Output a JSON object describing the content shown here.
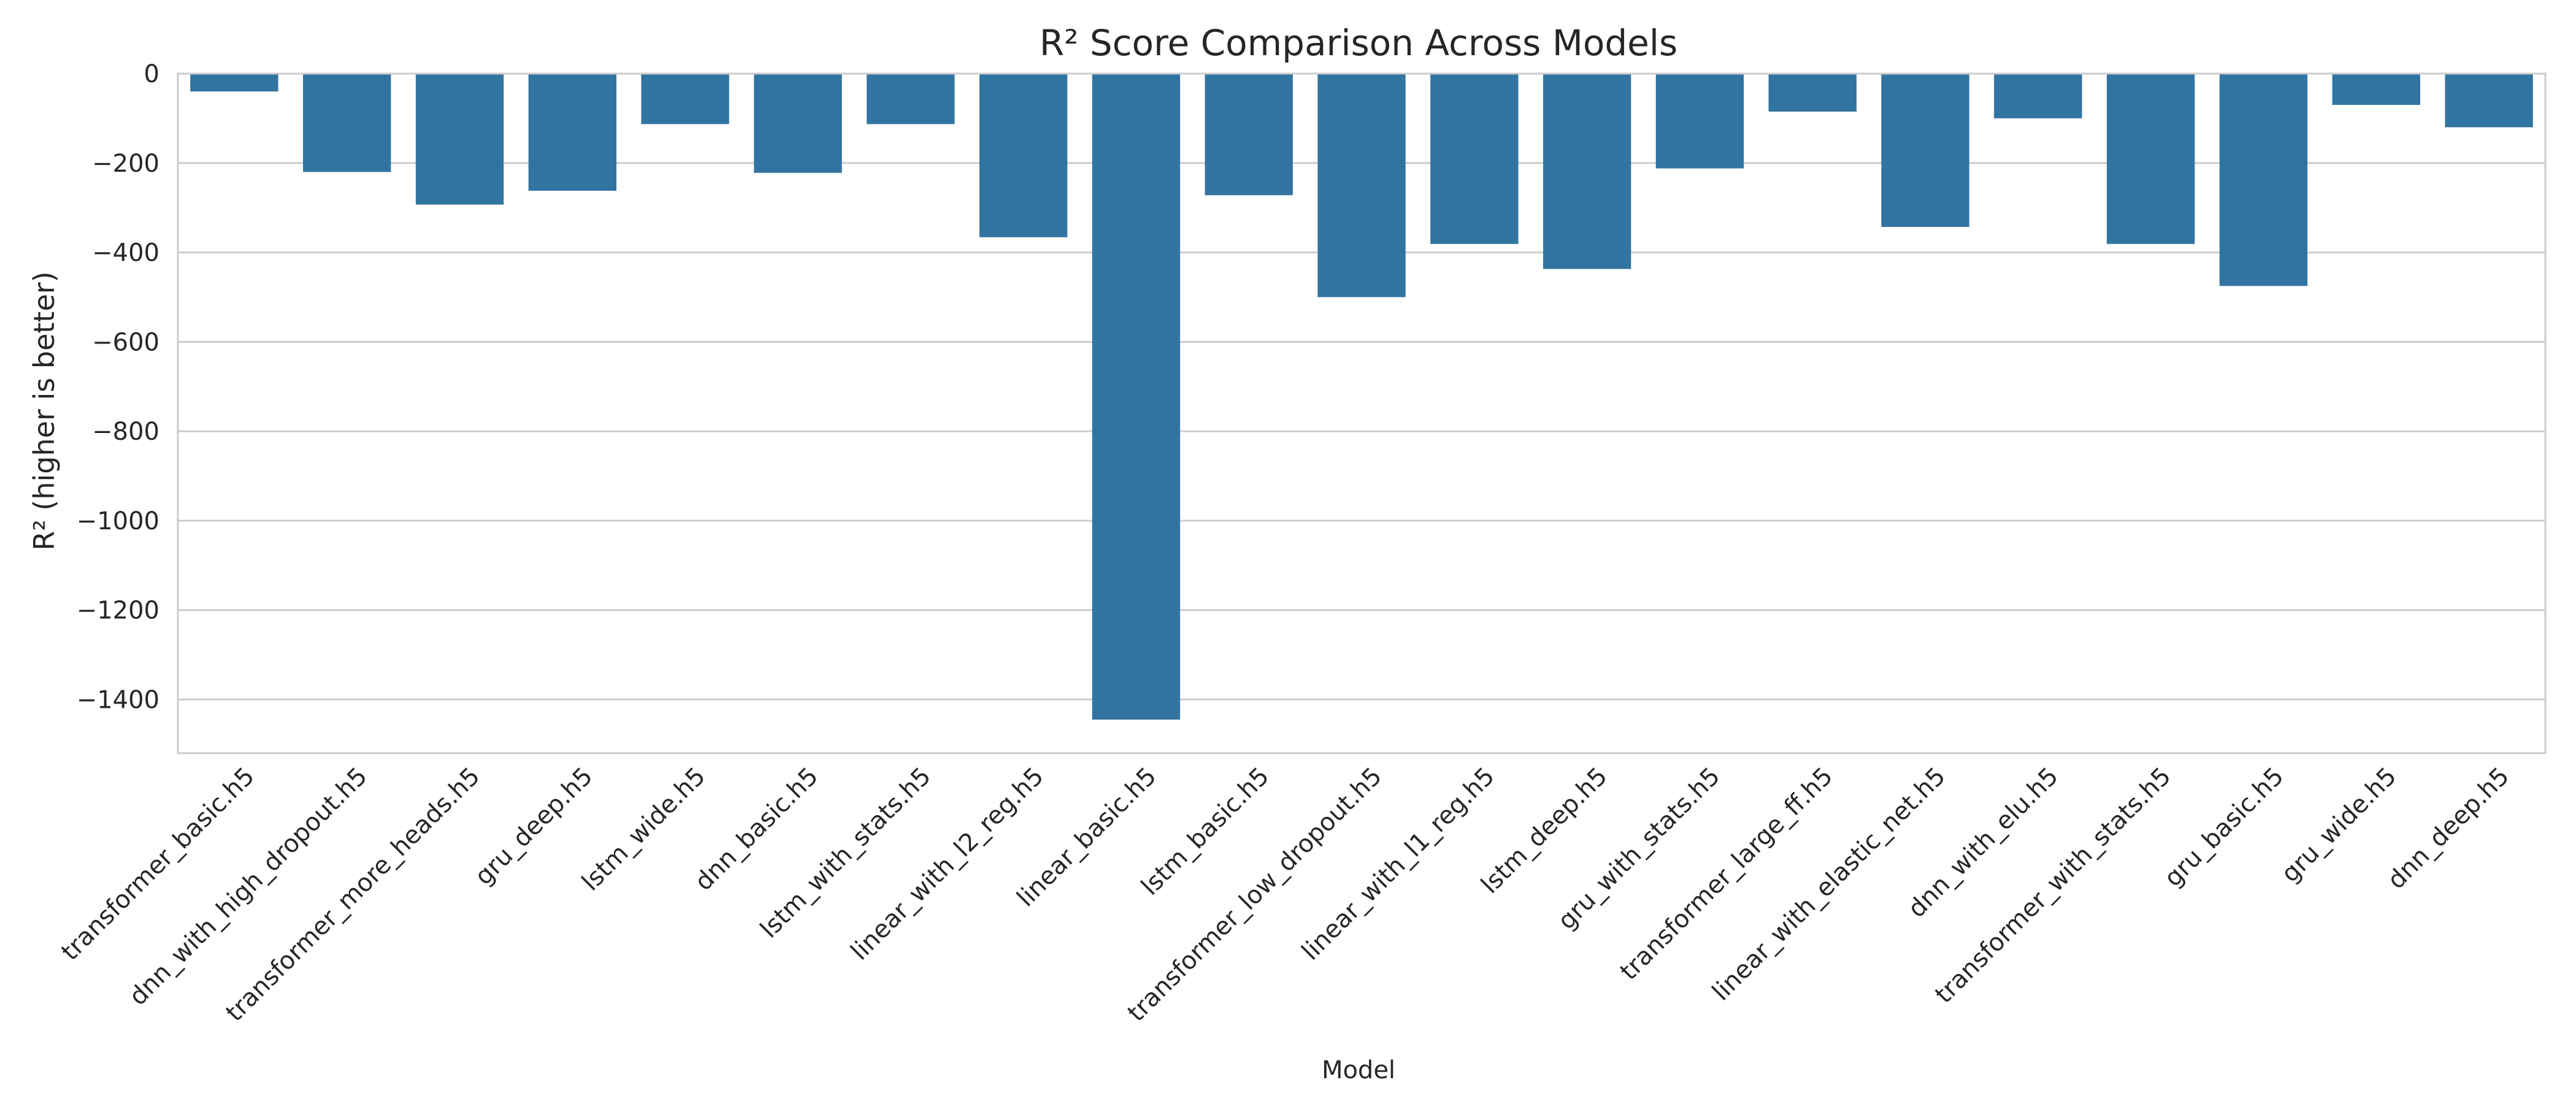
{
  "chart_data": {
    "type": "bar",
    "title": "R² Score Comparison Across Models",
    "xlabel": "Model",
    "ylabel": "R² (higher is better)",
    "ylim": [
      -1520,
      0
    ],
    "yticks": [
      0,
      -200,
      -400,
      -600,
      -800,
      -1000,
      -1200,
      -1400
    ],
    "ytick_labels": [
      "0",
      "−200",
      "−400",
      "−600",
      "−800",
      "−1000",
      "−1200",
      "−1400"
    ],
    "grid": true,
    "bar_color": "#3274a1",
    "grid_color": "#cccccc",
    "categories": [
      "transformer_basic.h5",
      "dnn_with_high_dropout.h5",
      "transformer_more_heads.h5",
      "gru_deep.h5",
      "lstm_wide.h5",
      "dnn_basic.h5",
      "lstm_with_stats.h5",
      "linear_with_l2_reg.h5",
      "linear_basic.h5",
      "lstm_basic.h5",
      "transformer_low_dropout.h5",
      "linear_with_l1_reg.h5",
      "lstm_deep.h5",
      "gru_with_stats.h5",
      "transformer_large_ff.h5",
      "linear_with_elastic_net.h5",
      "dnn_with_elu.h5",
      "transformer_with_stats.h5",
      "gru_basic.h5",
      "gru_wide.h5",
      "dnn_deep.h5"
    ],
    "values": [
      -40,
      -220,
      -293,
      -262,
      -113,
      -222,
      -113,
      -366,
      -1445,
      -272,
      -500,
      -381,
      -437,
      -212,
      -85,
      -343,
      -100,
      -381,
      -475,
      -70,
      -120
    ]
  }
}
